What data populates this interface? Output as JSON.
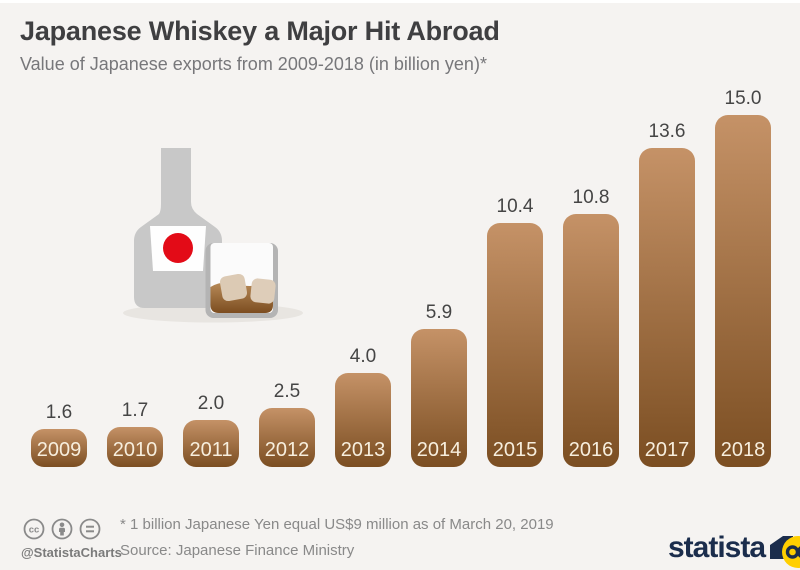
{
  "chart_data": {
    "type": "bar",
    "title": "Japanese Whiskey a Major Hit Abroad",
    "subtitle": "Value of Japanese exports from 2009-2018 (in billion yen)*",
    "categories": [
      "2009",
      "2010",
      "2011",
      "2012",
      "2013",
      "2014",
      "2015",
      "2016",
      "2017",
      "2018"
    ],
    "values": [
      1.6,
      1.7,
      2.0,
      2.5,
      4.0,
      5.9,
      10.4,
      10.8,
      13.6,
      15.0
    ],
    "xlabel": "",
    "ylabel": "billion yen",
    "ylim": [
      0,
      15.5
    ],
    "grid": false,
    "legend": "none",
    "bar_color_top": "#c59267",
    "bar_color_bottom": "#7b4e22",
    "value_label_color": "#454545",
    "category_label_color": "#f7eedd"
  },
  "illustration": {
    "name": "whiskey-bottle-and-glass",
    "bottle_color": "#c8c8c8",
    "flag_red": "#e30b17",
    "glass_border": "#b4b4b4",
    "whiskey_top": "#b78a58",
    "whiskey_bottom": "#7c4d20",
    "ice_color": "#dccab4"
  },
  "footer": {
    "license_icons": [
      "cc-icon",
      "attribution-person-icon",
      "equal-icon"
    ],
    "handle": "@StatistaCharts",
    "footnote": "* 1 billion Japanese Yen equal US$9 million as of March 20, 2019",
    "source": "Source: Japanese Finance Ministry",
    "brand": "statista",
    "brand_navy": "#1b2d4c",
    "brand_yellow": "#ffcf00"
  }
}
